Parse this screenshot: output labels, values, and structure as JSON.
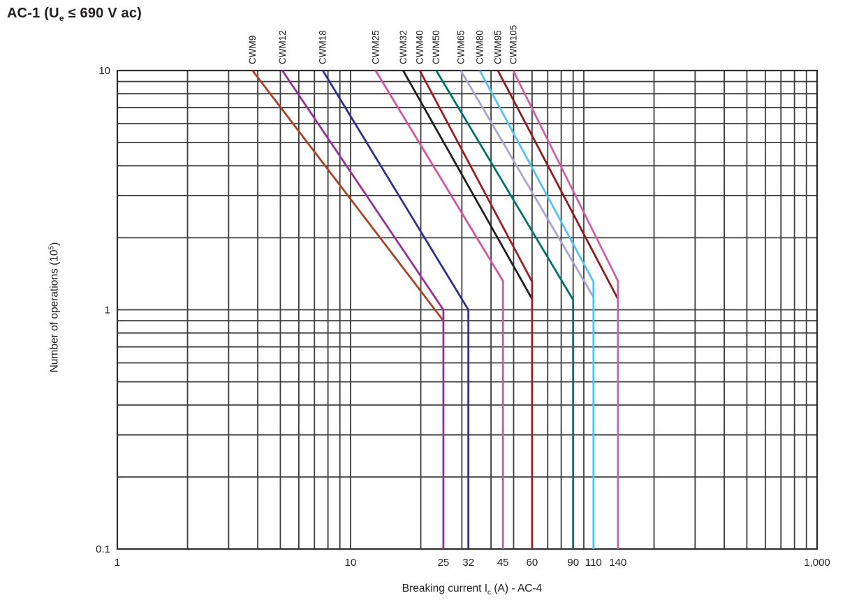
{
  "title": {
    "part1": "AC-1 (U",
    "sub": "e",
    "part2": " ≤ 690 V ac)"
  },
  "chart_data": {
    "type": "line",
    "scale": "log-log",
    "grid": {
      "color": "#3c3c3c",
      "minor_log_grid": true,
      "border_color": "#2e2e2e"
    },
    "x_axis": {
      "label": {
        "part1": "Breaking current I",
        "sub": "c",
        "part2": " (A) - AC-4"
      },
      "scale": "log",
      "range": [
        1,
        1000
      ],
      "major_ticks": [
        {
          "value": 1,
          "label": "1"
        },
        {
          "value": 10,
          "label": "10"
        },
        {
          "value": 1000,
          "label": "1,000"
        }
      ],
      "breaking_current_ticks": [
        {
          "value": 25,
          "label": "25"
        },
        {
          "value": 32,
          "label": "32"
        },
        {
          "value": 45,
          "label": "45"
        },
        {
          "value": 60,
          "label": "60"
        },
        {
          "value": 90,
          "label": "90"
        },
        {
          "value": 110,
          "label": "110"
        },
        {
          "value": 140,
          "label": "140"
        }
      ]
    },
    "y_axis": {
      "label": {
        "part1": "Number of operations (10",
        "sup": "5",
        "part2": ")"
      },
      "scale": "log",
      "range": [
        0.1,
        10
      ],
      "ticks": [
        {
          "value": 10,
          "label": "10"
        },
        {
          "value": 1,
          "label": "1"
        },
        {
          "value": 0.1,
          "label": "0.1"
        }
      ]
    },
    "series": [
      {
        "name": "CWM9",
        "color": "#a8432a",
        "points": [
          [
            3.8,
            10
          ],
          [
            25,
            0.9
          ]
        ]
      },
      {
        "name": "CWM12",
        "color": "#98309a",
        "points": [
          [
            5.1,
            10
          ],
          [
            25,
            1.0
          ],
          [
            25,
            0.1
          ]
        ]
      },
      {
        "name": "CWM18",
        "color": "#2e3192",
        "points": [
          [
            7.6,
            10
          ],
          [
            32,
            1.0
          ],
          [
            32,
            0.1
          ]
        ]
      },
      {
        "name": "CWM25",
        "color": "#d6559f",
        "points": [
          [
            12.8,
            10
          ],
          [
            45,
            1.32
          ],
          [
            45,
            0.1
          ]
        ]
      },
      {
        "name": "CWM32",
        "color": "#231f20",
        "points": [
          [
            16.8,
            10
          ],
          [
            60,
            1.11
          ]
        ]
      },
      {
        "name": "CWM40",
        "color": "#a01d22",
        "points": [
          [
            19.8,
            10
          ],
          [
            60,
            1.31
          ],
          [
            60,
            0.1
          ]
        ]
      },
      {
        "name": "CWM50",
        "color": "#00746b",
        "points": [
          [
            23.3,
            10
          ],
          [
            90,
            1.1
          ],
          [
            90,
            0.1
          ]
        ]
      },
      {
        "name": "CWM65",
        "color": "#a8a5d2",
        "points": [
          [
            29.7,
            10
          ],
          [
            110,
            1.13
          ]
        ]
      },
      {
        "name": "CWM80",
        "color": "#55c3ef",
        "points": [
          [
            35.8,
            10
          ],
          [
            110,
            1.31
          ],
          [
            110,
            0.1
          ]
        ]
      },
      {
        "name": "CWM95",
        "color": "#8e1b20",
        "points": [
          [
            42.8,
            10
          ],
          [
            140,
            1.11
          ]
        ]
      },
      {
        "name": "CWM105",
        "color": "#d060a8",
        "points": [
          [
            49.8,
            10
          ],
          [
            140,
            1.32
          ],
          [
            140,
            0.1
          ]
        ]
      }
    ]
  }
}
